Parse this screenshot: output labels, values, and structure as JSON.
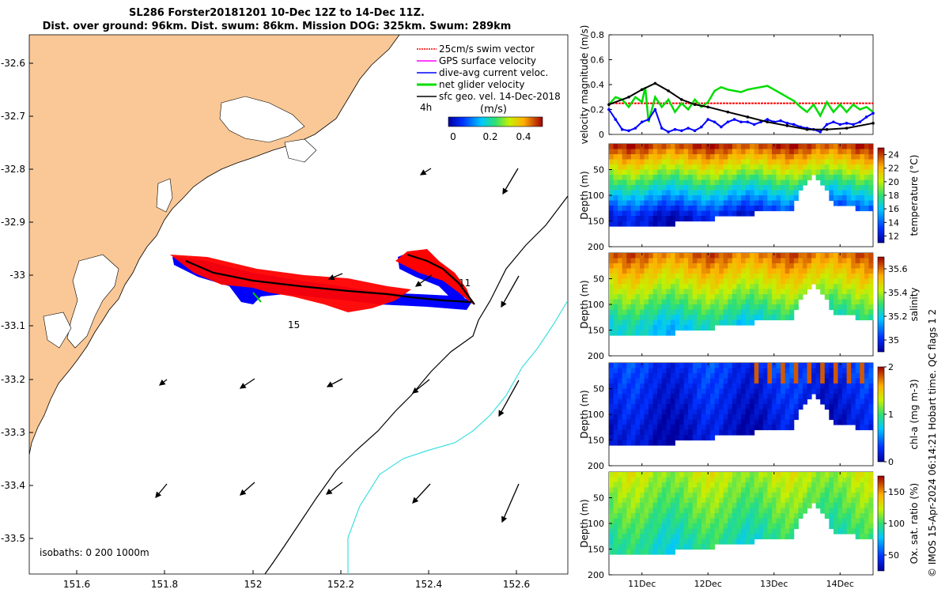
{
  "title": {
    "line1": "SL286 Forster20181201 10-Dec 12Z to 14-Dec 11Z.",
    "line2": "Dist. over ground: 96km. Dist. swum: 86km. Mission DOG: 325km. Swum: 289km"
  },
  "colors": {
    "land": "#fac896",
    "swim_vector": "#ff0000",
    "gps_surface": "#ff00ff",
    "dive_avg": "#0000ff",
    "net_glider": "#00dd00",
    "sfc_geo": "#000000",
    "isobath_200": "#000000",
    "isobath_1000": "#40e0e0"
  },
  "map": {
    "lon_ticks": [
      "151.6",
      "151.8",
      "152",
      "152.2",
      "152.4",
      "152.6"
    ],
    "lat_ticks": [
      "-32.6",
      "-32.7",
      "-32.8",
      "-32.9",
      "-33",
      "-33.1",
      "-33.2",
      "-33.3",
      "-33.4",
      "-33.5"
    ],
    "legend": [
      "25cm/s swim vector",
      "GPS surface velocity",
      "dive-avg current veloc.",
      "net glider velocity",
      "sfc geo. vel. 14-Dec-2018"
    ],
    "legend_time": "4h",
    "colorbar_label": "(m/s)",
    "colorbar_ticks": [
      "0",
      "0.2",
      "0.4"
    ],
    "day_labels": [
      "11",
      "15"
    ],
    "isobaths": "isobaths: 0   200  1000m"
  },
  "chart_data": [
    {
      "type": "line",
      "title": "",
      "ylabel": "velocity magnitude (m/s)",
      "ylim": [
        0,
        0.8
      ],
      "yticks": [
        "0",
        "0.2",
        "0.4",
        "0.6",
        "0.8"
      ],
      "x_ticks": [
        "11Dec",
        "12Dec",
        "13Dec",
        "14Dec"
      ],
      "xlim": [
        10.5,
        14.5
      ],
      "series": [
        {
          "name": "25cm/s swim vector",
          "x": [
            10.5,
            14.5
          ],
          "values": [
            0.25,
            0.25
          ]
        },
        {
          "name": "net glider velocity",
          "x": [
            10.5,
            10.6,
            10.7,
            10.8,
            10.9,
            11.0,
            11.05,
            11.1,
            11.2,
            11.3,
            11.4,
            11.5,
            11.6,
            11.7,
            11.8,
            11.9,
            12.0,
            12.1,
            12.2,
            12.3,
            12.4,
            12.5,
            12.6,
            12.7,
            12.8,
            12.9,
            13.0,
            13.1,
            13.2,
            13.3,
            13.4,
            13.5,
            13.6,
            13.7,
            13.8,
            13.9,
            14.0,
            14.1,
            14.2,
            14.3,
            14.4,
            14.5
          ],
          "values": [
            0.24,
            0.3,
            0.28,
            0.22,
            0.3,
            0.26,
            0.38,
            0.1,
            0.3,
            0.22,
            0.28,
            0.18,
            0.25,
            0.2,
            0.28,
            0.22,
            0.26,
            0.35,
            0.38,
            0.36,
            0.35,
            0.34,
            0.36,
            0.37,
            0.38,
            0.39,
            0.36,
            0.33,
            0.3,
            0.27,
            0.22,
            0.18,
            0.24,
            0.15,
            0.26,
            0.18,
            0.24,
            0.18,
            0.24,
            0.2,
            0.22,
            0.18
          ]
        },
        {
          "name": "dive-avg current veloc.",
          "x": [
            10.5,
            10.6,
            10.7,
            10.8,
            10.9,
            11.0,
            11.1,
            11.2,
            11.3,
            11.4,
            11.5,
            11.6,
            11.7,
            11.8,
            11.9,
            12.0,
            12.1,
            12.2,
            12.3,
            12.4,
            12.5,
            12.6,
            12.7,
            12.8,
            12.9,
            13.0,
            13.1,
            13.2,
            13.3,
            13.4,
            13.5,
            13.6,
            13.7,
            13.8,
            13.9,
            14.0,
            14.1,
            14.2,
            14.3,
            14.4,
            14.5
          ],
          "values": [
            0.2,
            0.12,
            0.04,
            0.03,
            0.05,
            0.1,
            0.12,
            0.2,
            0.05,
            0.02,
            0.04,
            0.03,
            0.05,
            0.03,
            0.06,
            0.12,
            0.1,
            0.06,
            0.1,
            0.12,
            0.1,
            0.1,
            0.08,
            0.1,
            0.12,
            0.1,
            0.11,
            0.09,
            0.08,
            0.06,
            0.05,
            0.04,
            0.02,
            0.08,
            0.1,
            0.08,
            0.09,
            0.08,
            0.1,
            0.14,
            0.17
          ]
        },
        {
          "name": "sfc geo. vel. 14-Dec-2018",
          "x": [
            10.5,
            10.8,
            11.0,
            11.2,
            11.4,
            11.6,
            11.8,
            12.0,
            12.3,
            12.6,
            12.9,
            13.2,
            13.5,
            13.8,
            14.1,
            14.5
          ],
          "values": [
            0.24,
            0.3,
            0.36,
            0.41,
            0.35,
            0.28,
            0.24,
            0.22,
            0.18,
            0.14,
            0.1,
            0.07,
            0.04,
            0.04,
            0.05,
            0.09
          ]
        }
      ]
    },
    {
      "type": "heatmap",
      "title": "",
      "ylabel": "Depth (m)",
      "colorbar_label": "temperature (°C)",
      "yticks": [
        "50",
        "100",
        "150",
        "200"
      ],
      "colorbar_ticks": [
        "12",
        "14",
        "16",
        "18",
        "20",
        "22",
        "24"
      ],
      "clim": [
        11,
        25
      ],
      "x_ticks": [
        "11Dec",
        "12Dec",
        "13Dec",
        "14Dec"
      ],
      "surface": 24,
      "bottom": 12
    },
    {
      "type": "heatmap",
      "title": "",
      "ylabel": "Depth (m)",
      "colorbar_label": "salinity",
      "yticks": [
        "50",
        "100",
        "150",
        "200"
      ],
      "colorbar_ticks": [
        "35",
        "35.2",
        "35.4",
        "35.6"
      ],
      "clim": [
        34.9,
        35.7
      ],
      "x_ticks": [
        "11Dec",
        "12Dec",
        "13Dec",
        "14Dec"
      ],
      "surface": 35.6,
      "bottom": 35.2
    },
    {
      "type": "heatmap",
      "title": "",
      "ylabel": "Depth (m)",
      "colorbar_label": "chl-a (mg m-3)",
      "yticks": [
        "50",
        "100",
        "150",
        "200"
      ],
      "colorbar_ticks": [
        "0",
        "1",
        "2"
      ],
      "clim": [
        0,
        2
      ],
      "x_ticks": [
        "11Dec",
        "12Dec",
        "13Dec",
        "14Dec"
      ],
      "surface": 0.3,
      "bottom": 0.1
    },
    {
      "type": "heatmap",
      "title": "",
      "ylabel": "Depth (m)",
      "colorbar_label": "Ox. sat. ratio (%)",
      "yticks": [
        "50",
        "100",
        "150",
        "200"
      ],
      "colorbar_ticks": [
        "50",
        "100",
        "150"
      ],
      "clim": [
        25,
        175
      ],
      "x_ticks": [
        "11Dec",
        "12Dec",
        "13Dec",
        "14Dec"
      ],
      "surface": 120,
      "bottom": 90
    }
  ],
  "copyright": "© IMOS 15-Apr-2024 06:14:21 Hobart time. QC flags 1  2"
}
